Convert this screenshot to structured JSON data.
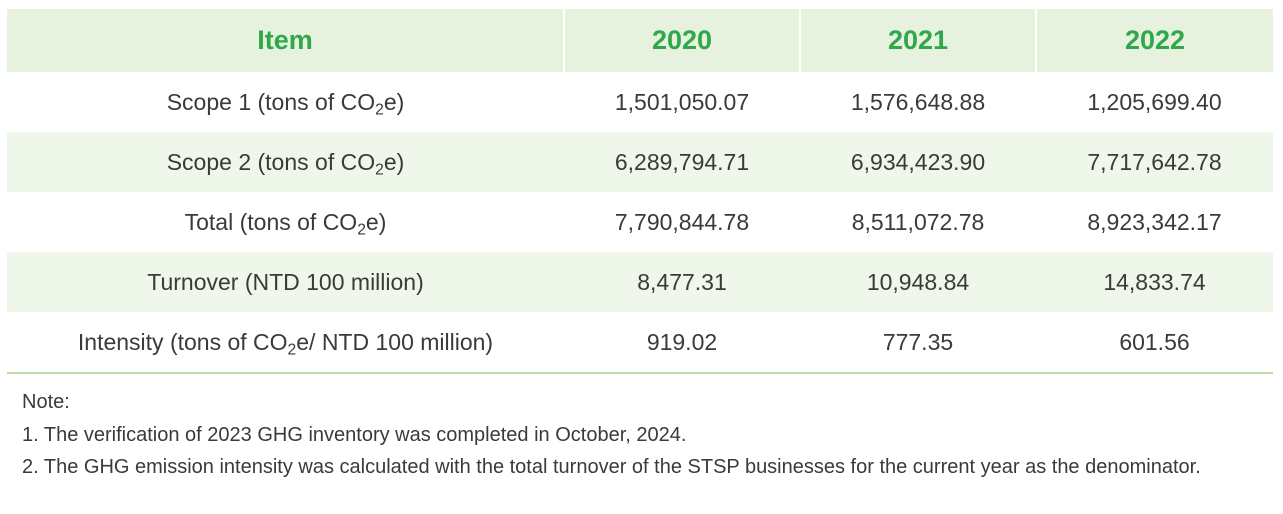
{
  "table": {
    "headers": [
      "Item",
      "2020",
      "2021",
      "2022"
    ],
    "rows": [
      {
        "label_pre": "Scope 1 (tons of CO",
        "label_sub": "2",
        "label_post": "e)",
        "values": [
          "1,501,050.07",
          "1,576,648.88",
          "1,205,699.40"
        ]
      },
      {
        "label_pre": "Scope 2 (tons of CO",
        "label_sub": "2",
        "label_post": "e)",
        "values": [
          "6,289,794.71",
          "6,934,423.90",
          "7,717,642.78"
        ]
      },
      {
        "label_pre": "Total (tons of CO",
        "label_sub": "2",
        "label_post": "e)",
        "values": [
          "7,790,844.78",
          "8,511,072.78",
          "8,923,342.17"
        ]
      },
      {
        "label_pre": "Turnover (NTD 100 million)",
        "label_sub": "",
        "label_post": "",
        "values": [
          "8,477.31",
          "10,948.84",
          "14,833.74"
        ]
      },
      {
        "label_pre": "Intensity (tons of CO",
        "label_sub": "2",
        "label_post": "e/ NTD 100 million)",
        "values": [
          "919.02",
          "777.35",
          "601.56"
        ]
      }
    ]
  },
  "notes": {
    "title": "Note:",
    "items": [
      "1. The verification of 2023 GHG inventory was completed in October, 2024.",
      "2. The GHG emission intensity was calculated with the total turnover of the STSP businesses for the current year as the denominator."
    ]
  },
  "colors": {
    "header_bg": "#e6f1de",
    "header_text": "#2fa84a",
    "alt_row_bg": "#eff6ea",
    "rule": "#bcdca8"
  }
}
